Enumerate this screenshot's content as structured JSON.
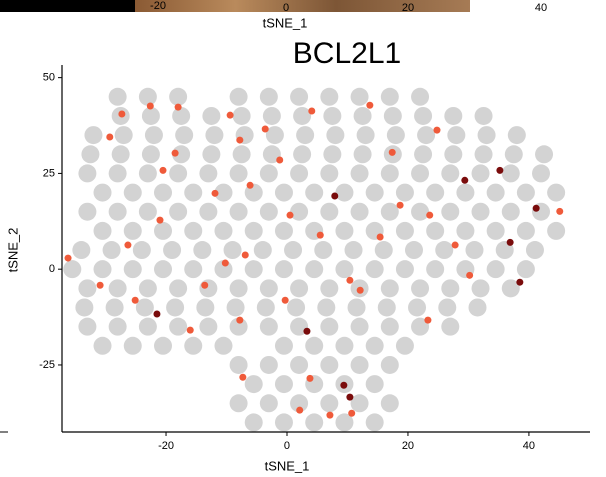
{
  "header_strip": {
    "tick_labels": [
      "-20",
      "0",
      "20",
      "40"
    ],
    "axis_label": "tSNE_1"
  },
  "chart_data": {
    "type": "scatter",
    "title": "BCL2L1",
    "xlabel": "tSNE_1",
    "ylabel": "tSNE_2",
    "xlim": [
      -37.2,
      50.1
    ],
    "ylim": [
      -42.5,
      53.3
    ],
    "xticks": [
      -20,
      0,
      20,
      40
    ],
    "yticks": [
      -25,
      0,
      25,
      50
    ],
    "grid": false,
    "series": [
      {
        "color": "#d3d3d3",
        "x": [
          -28,
          -23,
          -18,
          -8,
          -3,
          2,
          7,
          12,
          17,
          22,
          -27.5,
          -22.5,
          -17.5,
          -12.5,
          -7.5,
          -2.5,
          2.5,
          7.5,
          12.5,
          17.5,
          22.5,
          27.5,
          32.5,
          -32,
          -27,
          -22,
          -17,
          -12,
          -7,
          -2,
          3,
          8,
          13,
          18,
          23,
          28,
          33,
          38,
          -32.5,
          -27.5,
          -22.5,
          -17.5,
          -12.5,
          -7.5,
          -2.5,
          2.5,
          7.5,
          12.5,
          17.5,
          22.5,
          27.5,
          32.5,
          37.5,
          42.5,
          -33,
          -28,
          -23,
          -18,
          -13,
          -8,
          -3,
          2,
          7,
          12,
          17,
          22,
          27,
          32,
          37,
          42,
          -30.5,
          -25.5,
          -20.5,
          -15.5,
          -10.5,
          -5.5,
          -0.5,
          4.5,
          9.5,
          14.5,
          19.5,
          24.5,
          29.5,
          34.5,
          39.5,
          44.5,
          -33,
          -28,
          -23,
          -18,
          -13,
          -8,
          -3,
          2,
          7,
          12,
          17,
          22,
          27,
          32,
          37,
          42,
          -30.5,
          -25.5,
          -20.5,
          -15.5,
          -10.5,
          -5.5,
          -0.5,
          4.5,
          9.5,
          14.5,
          19.5,
          24.5,
          29.5,
          34.5,
          39.5,
          44.5,
          -34,
          -29,
          -24,
          -19,
          -14,
          -9,
          -4,
          1,
          6,
          11,
          16,
          21,
          26,
          31,
          36,
          41,
          -35.5,
          -30.5,
          -25.5,
          -20.5,
          -15.5,
          -10.5,
          -5.5,
          -0.5,
          4.5,
          9.5,
          14.5,
          19.5,
          24.5,
          29.5,
          34.5,
          39.5,
          -33,
          -28,
          -23,
          -18,
          -13,
          -8,
          -3,
          2,
          7,
          12,
          17,
          22,
          27,
          32,
          37,
          -33.5,
          -28.5,
          -23.5,
          -18.5,
          -13.5,
          -8.5,
          -3.5,
          1.5,
          6.5,
          11.5,
          16.5,
          21.5,
          26.5,
          31.5,
          -33,
          -28,
          -23,
          -18,
          -13,
          -8,
          -3,
          2,
          7,
          12,
          17,
          22,
          27,
          -30.5,
          -25.5,
          -20.5,
          -15.5,
          -10.5,
          -0.5,
          4.5,
          9.5,
          14.5,
          19.5,
          -8,
          -3,
          2,
          7,
          12,
          17,
          -5.5,
          -0.5,
          4.5,
          9.5,
          14.5,
          -8,
          -3,
          2,
          7,
          12,
          17,
          -5.5,
          -0.5,
          4.5,
          9.5,
          14.5
        ],
        "values": [
          45,
          45,
          45,
          45,
          45,
          45,
          45,
          45,
          45,
          45,
          40,
          40,
          40,
          40,
          40,
          40,
          40,
          40,
          40,
          40,
          40,
          40,
          40,
          35,
          35,
          35,
          35,
          35,
          35,
          35,
          35,
          35,
          35,
          35,
          35,
          35,
          35,
          35,
          30,
          30,
          30,
          30,
          30,
          30,
          30,
          30,
          30,
          30,
          30,
          30,
          30,
          30,
          30,
          30,
          25,
          25,
          25,
          25,
          25,
          25,
          25,
          25,
          25,
          25,
          25,
          25,
          25,
          25,
          25,
          25,
          20,
          20,
          20,
          20,
          20,
          20,
          20,
          20,
          20,
          20,
          20,
          20,
          20,
          20,
          20,
          20,
          15,
          15,
          15,
          15,
          15,
          15,
          15,
          15,
          15,
          15,
          15,
          15,
          15,
          15,
          15,
          15,
          10,
          10,
          10,
          10,
          10,
          10,
          10,
          10,
          10,
          10,
          10,
          10,
          10,
          10,
          10,
          10,
          5,
          5,
          5,
          5,
          5,
          5,
          5,
          5,
          5,
          5,
          5,
          5,
          5,
          5,
          5,
          5,
          0,
          0,
          0,
          0,
          0,
          0,
          0,
          0,
          0,
          0,
          0,
          0,
          0,
          0,
          0,
          0,
          -5,
          -5,
          -5,
          -5,
          -5,
          -5,
          -5,
          -5,
          -5,
          -5,
          -5,
          -5,
          -5,
          -5,
          -5,
          -10,
          -10,
          -10,
          -10,
          -10,
          -10,
          -10,
          -10,
          -10,
          -10,
          -10,
          -10,
          -10,
          -10,
          -15,
          -15,
          -15,
          -15,
          -15,
          -15,
          -15,
          -15,
          -15,
          -15,
          -15,
          -15,
          -15,
          -20,
          -20,
          -20,
          -20,
          -20,
          -20,
          -20,
          -20,
          -20,
          -20,
          -25,
          -25,
          -25,
          -25,
          -25,
          -25,
          -30,
          -30,
          -30,
          -30,
          -30,
          -35,
          -35,
          -35,
          -35,
          -35,
          -35,
          -40,
          -40,
          -40,
          -40,
          -40
        ]
      },
      {
        "color": "#ef5a3a",
        "x": [
          -27.3,
          -22.6,
          -18,
          -29.3,
          -18.5,
          -20.5,
          -9.4,
          -7.8,
          -3.6,
          4.1,
          13.7,
          17.4,
          24.8,
          -11.9,
          -6.1,
          0.5,
          5.5,
          18.7,
          23.6,
          27.8,
          -26.3,
          -21,
          -30.9,
          -25.1,
          -13.6,
          -6.9,
          -16,
          -7.8,
          -0.3,
          12.1,
          23.3,
          30.2,
          -7.3,
          3.8,
          2.1,
          7.1,
          10.7,
          -36.2,
          45.1,
          -10.2,
          15.4,
          -1.2,
          10.4
        ],
        "values": [
          40.5,
          42.6,
          42.3,
          34.5,
          30.3,
          25.8,
          40.2,
          33.7,
          36.6,
          41.3,
          42.8,
          30.5,
          36.3,
          19.8,
          21.9,
          14.1,
          8.9,
          16.7,
          14.1,
          6.3,
          6.3,
          12.8,
          -4.2,
          -8.1,
          -4.2,
          3.7,
          -15.9,
          -13.3,
          -8.1,
          -5.5,
          -13.3,
          -1.6,
          -28.2,
          -28.5,
          -36.8,
          -38.1,
          -37.6,
          2.9,
          15.1,
          1.6,
          8.4,
          28.5,
          -2.9
        ]
      },
      {
        "color": "#7a0c0c",
        "x": [
          29.4,
          35.2,
          41.2,
          36.9,
          38.5,
          7.9,
          -21.5,
          3.3,
          9.4,
          10.4
        ],
        "values": [
          23.2,
          25.8,
          15.9,
          7,
          -3.4,
          19.1,
          -11.7,
          -16.2,
          -30.3,
          -33.4
        ]
      }
    ]
  }
}
